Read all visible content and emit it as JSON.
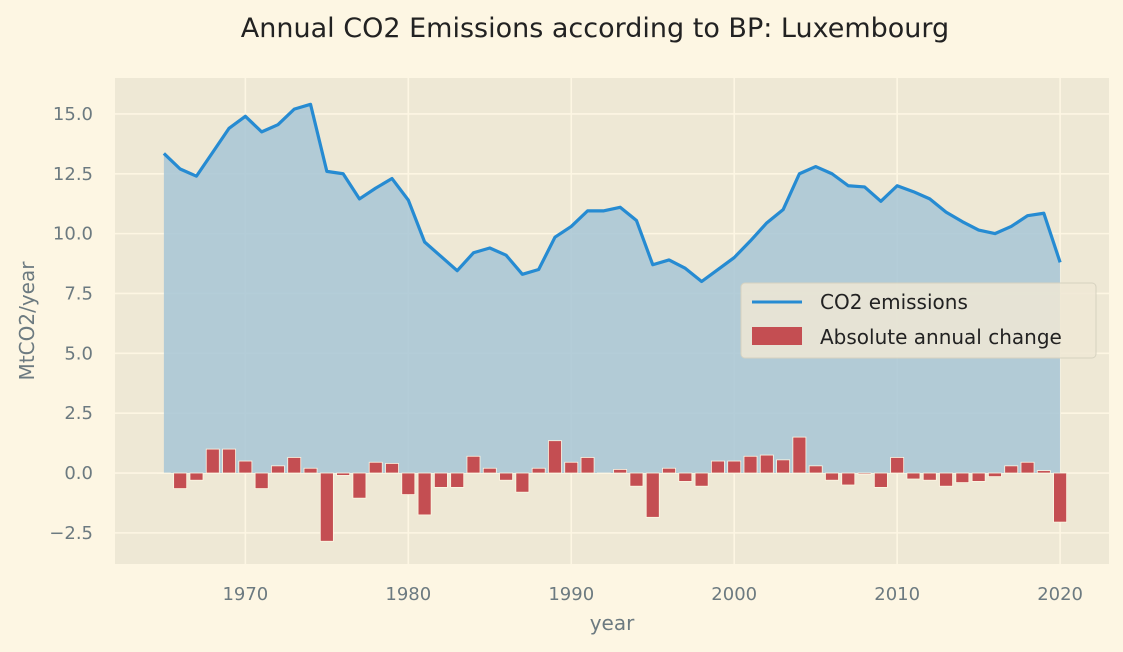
{
  "chart_data": {
    "type": "line+bar",
    "title": "Annual CO2 Emissions according to BP: Luxembourg",
    "xlabel": "year",
    "ylabel": "MtCO2/year",
    "xlim": [
      1962,
      2023
    ],
    "ylim": [
      -3.8,
      16.5
    ],
    "x_ticks": [
      1970,
      1980,
      1990,
      2000,
      2010,
      2020
    ],
    "y_ticks": [
      -2.5,
      0.0,
      2.5,
      5.0,
      7.5,
      10.0,
      12.5,
      15.0
    ],
    "y_tick_labels": [
      "−2.5",
      "0.0",
      "2.5",
      "5.0",
      "7.5",
      "10.0",
      "12.5",
      "15.0"
    ],
    "grid": true,
    "legend_position": "center-right",
    "x": [
      1965,
      1966,
      1967,
      1968,
      1969,
      1970,
      1971,
      1972,
      1973,
      1974,
      1975,
      1976,
      1977,
      1978,
      1979,
      1980,
      1981,
      1982,
      1983,
      1984,
      1985,
      1986,
      1987,
      1988,
      1989,
      1990,
      1991,
      1992,
      1993,
      1994,
      1995,
      1996,
      1997,
      1998,
      1999,
      2000,
      2001,
      2002,
      2003,
      2004,
      2005,
      2006,
      2007,
      2008,
      2009,
      2010,
      2011,
      2012,
      2013,
      2014,
      2015,
      2016,
      2017,
      2018,
      2019,
      2020
    ],
    "series": [
      {
        "name": "CO2 emissions",
        "kind": "line",
        "color": "#268bd2",
        "fill_color": "#a7c6d6",
        "values": [
          13.35,
          12.7,
          12.4,
          13.4,
          14.4,
          14.9,
          14.25,
          14.55,
          15.2,
          15.4,
          12.6,
          12.5,
          11.45,
          11.9,
          12.3,
          11.4,
          9.65,
          9.05,
          8.45,
          9.2,
          9.4,
          9.1,
          8.3,
          8.5,
          9.85,
          10.3,
          10.95,
          10.95,
          11.1,
          10.55,
          8.7,
          8.9,
          8.55,
          8.0,
          8.5,
          9.0,
          9.7,
          10.45,
          11.0,
          12.5,
          12.8,
          12.5,
          12.0,
          11.95,
          11.35,
          12.0,
          11.75,
          11.45,
          10.9,
          10.5,
          10.15,
          10.0,
          10.3,
          10.75,
          10.85,
          8.8
        ]
      },
      {
        "name": "Absolute annual change",
        "kind": "bar",
        "color": "#c44e52",
        "values": [
          0,
          -0.65,
          -0.3,
          1.0,
          1.0,
          0.5,
          -0.65,
          0.3,
          0.65,
          0.2,
          -2.85,
          -0.1,
          -1.05,
          0.45,
          0.4,
          -0.9,
          -1.75,
          -0.6,
          -0.6,
          0.7,
          0.2,
          -0.3,
          -0.8,
          0.2,
          1.35,
          0.45,
          0.65,
          0.0,
          0.15,
          -0.55,
          -1.85,
          0.2,
          -0.35,
          -0.55,
          0.5,
          0.5,
          0.7,
          0.75,
          0.55,
          1.5,
          0.3,
          -0.3,
          -0.5,
          -0.05,
          -0.6,
          0.65,
          -0.25,
          -0.3,
          -0.55,
          -0.4,
          -0.35,
          -0.15,
          0.3,
          0.45,
          0.1,
          -2.05
        ]
      }
    ]
  }
}
